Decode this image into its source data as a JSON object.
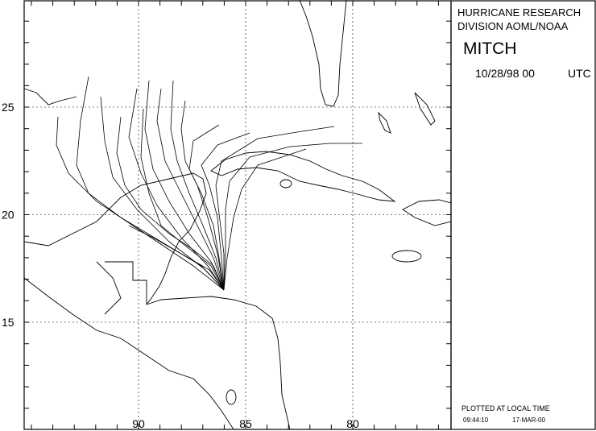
{
  "header": {
    "line1": "HURRICANE RESEARCH",
    "line2": "DIVISION AOML/NOAA",
    "storm": "MITCH",
    "date": "10/28/98 00",
    "zone": "UTC"
  },
  "map": {
    "lat_ticks": [
      25,
      20,
      15
    ],
    "lon_ticks": [
      90,
      85,
      80
    ]
  },
  "footer": {
    "note": "PLOTTED AT LOCAL TIME",
    "time": "09:44:10",
    "date": "17-MAR-00"
  }
}
